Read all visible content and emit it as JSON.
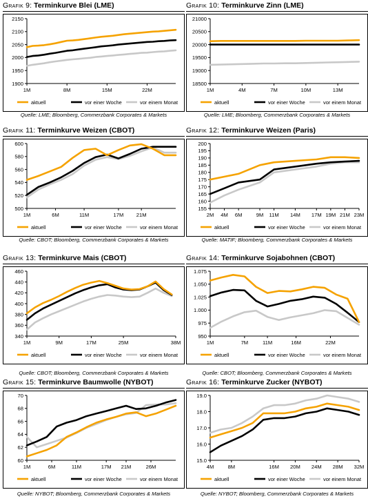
{
  "legend_labels": {
    "aktuell": "aktuell",
    "woche": "vor einer Woche",
    "monat": "vor einem Monat"
  },
  "colors": {
    "aktuell": "#F5A200",
    "woche": "#000000",
    "monat": "#C8C8C8"
  },
  "chart_data": [
    {
      "type": "line",
      "grafik": "Grafik 9:",
      "name": "Terminkurve Blei (LME)",
      "source": "Quelle: LME; Bloomberg, Commerzbank Corporates & Markets",
      "ylim": [
        1900,
        2150
      ],
      "yticks": [
        1900,
        1950,
        2000,
        2050,
        2100,
        2150
      ],
      "ytick_labels": [
        "1900",
        "1950",
        "2000",
        "2050",
        "2100",
        "2150"
      ],
      "x": [
        1,
        2,
        3,
        4,
        5,
        6,
        7,
        8,
        9,
        10,
        11,
        12,
        13,
        14,
        15,
        16,
        17,
        18,
        19,
        20,
        21,
        22,
        23,
        24,
        25,
        26,
        27
      ],
      "xlim": [
        1,
        27
      ],
      "xticks": [
        1,
        8,
        15,
        22
      ],
      "xtick_labels": [
        "1M",
        "8M",
        "15M",
        "22M"
      ],
      "series": [
        {
          "name": "aktuell",
          "values": [
            2040,
            2045,
            2046,
            2048,
            2051,
            2055,
            2060,
            2065,
            2066,
            2068,
            2071,
            2074,
            2077,
            2080,
            2082,
            2084,
            2087,
            2090,
            2092,
            2094,
            2096,
            2098,
            2100,
            2101,
            2103,
            2105,
            2107
          ]
        },
        {
          "name": "vor einer Woche",
          "values": [
            2002,
            2006,
            2008,
            2011,
            2015,
            2018,
            2022,
            2026,
            2028,
            2031,
            2034,
            2037,
            2040,
            2043,
            2045,
            2047,
            2050,
            2052,
            2054,
            2056,
            2058,
            2060,
            2061,
            2063,
            2064,
            2066,
            2067
          ]
        },
        {
          "name": "vor einem Monat",
          "values": [
            1968,
            1972,
            1975,
            1978,
            1982,
            1985,
            1988,
            1991,
            1993,
            1995,
            1997,
            1999,
            2002,
            2004,
            2006,
            2008,
            2010,
            2012,
            2014,
            2016,
            2018,
            2019,
            2021,
            2023,
            2024,
            2026,
            2028
          ]
        }
      ]
    },
    {
      "type": "line",
      "grafik": "Grafik 10:",
      "name": "Terminkurve Zinn (LME)",
      "source": "Quelle: LME; Bloomberg, Commerzbank Corporates & Markets",
      "ylim": [
        18500,
        21000
      ],
      "yticks": [
        18500,
        19000,
        19500,
        20000,
        20500,
        21000
      ],
      "ytick_labels": [
        "18500",
        "19000",
        "19500",
        "20000",
        "20500",
        "21000"
      ],
      "x": [
        1,
        2,
        3,
        4,
        5,
        6,
        7,
        8,
        9,
        10,
        11,
        12,
        13,
        14,
        15
      ],
      "xlim": [
        1,
        15
      ],
      "xticks": [
        1,
        4,
        7,
        10,
        13
      ],
      "xtick_labels": [
        "1M",
        "4M",
        "7M",
        "10M",
        "13M"
      ],
      "series": [
        {
          "name": "aktuell",
          "values": [
            20130,
            20140,
            20140,
            20140,
            20140,
            20140,
            20140,
            20140,
            20140,
            20150,
            20150,
            20150,
            20150,
            20160,
            20170
          ]
        },
        {
          "name": "vor einer Woche",
          "values": [
            20000,
            20000,
            20000,
            20000,
            20000,
            20000,
            20000,
            20000,
            20000,
            20000,
            20000,
            20000,
            20000,
            20000,
            20000
          ]
        },
        {
          "name": "vor einem Monat",
          "values": [
            19220,
            19230,
            19240,
            19250,
            19260,
            19270,
            19270,
            19280,
            19280,
            19290,
            19300,
            19310,
            19320,
            19330,
            19340
          ]
        }
      ]
    },
    {
      "type": "line",
      "grafik": "Grafik 11:",
      "name": "Terminkurve Weizen (CBOT)",
      "source": "Quelle: CBOT; Bloomberg, Commerzbank Corporates & Markets",
      "ylim": [
        500,
        600
      ],
      "yticks": [
        500,
        520,
        540,
        560,
        580,
        600
      ],
      "ytick_labels": [
        "500",
        "520",
        "540",
        "560",
        "580",
        "600"
      ],
      "x": [
        1,
        3,
        5,
        7,
        9,
        11,
        13,
        15,
        17,
        19,
        21,
        23,
        25,
        27
      ],
      "xlim": [
        1,
        27
      ],
      "xticks": [
        1,
        6,
        11,
        17,
        21
      ],
      "xtick_labels": [
        "1M",
        "6M",
        "11M",
        "17M",
        "21M"
      ],
      "series": [
        {
          "name": "aktuell",
          "values": [
            544,
            550,
            557,
            564,
            578,
            590,
            592,
            582,
            590,
            597,
            599,
            592,
            582,
            582
          ]
        },
        {
          "name": "vor einer Woche",
          "values": [
            521,
            533,
            540,
            548,
            558,
            570,
            579,
            583,
            577,
            584,
            592,
            595,
            595,
            595
          ]
        },
        {
          "name": "vor einem Monat",
          "values": [
            517,
            529,
            537,
            544,
            553,
            566,
            575,
            579,
            576,
            581,
            588,
            594,
            586,
            586
          ]
        }
      ]
    },
    {
      "type": "line",
      "grafik": "Grafik 12:",
      "name": "Terminkurve Weizen (Paris)",
      "source": "Quelle: MATIF; Bloomberg, Commerzbank Corporates & Markets",
      "ylim": [
        155,
        200
      ],
      "yticks": [
        155,
        160,
        165,
        170,
        175,
        180,
        185,
        190,
        195,
        200
      ],
      "ytick_labels": [
        "155",
        "160",
        "165",
        "170",
        "175",
        "180",
        "185",
        "190",
        "195",
        "200"
      ],
      "x": [
        2,
        4,
        6,
        9,
        11,
        14,
        17,
        19,
        21,
        23
      ],
      "xlim": [
        2,
        23
      ],
      "xticks": [
        2,
        4,
        6,
        9,
        11,
        14,
        17,
        19,
        21,
        23
      ],
      "xtick_labels": [
        "2M",
        "4M",
        "6M",
        "9M",
        "11M",
        "14M",
        "17M",
        "19M",
        "21M",
        "23M"
      ],
      "series": [
        {
          "name": "aktuell",
          "values": [
            175,
            177,
            179,
            185,
            187,
            188,
            189,
            190.5,
            190.5,
            190
          ]
        },
        {
          "name": "vor einer Woche",
          "values": [
            165,
            169,
            173,
            175,
            182,
            184,
            186,
            187,
            187.5,
            188
          ]
        },
        {
          "name": "vor einem Monat",
          "values": [
            159,
            164,
            168,
            173,
            180,
            182,
            184,
            186,
            187,
            187
          ]
        }
      ]
    },
    {
      "type": "line",
      "grafik": "Grafik 13:",
      "name": "Terminkurve Mais (CBOT)",
      "source": "Quelle: CBOT; Bloomberg, Commerzbank Corporates & Markets",
      "ylim": [
        340,
        460
      ],
      "yticks": [
        340,
        360,
        380,
        400,
        420,
        440,
        460
      ],
      "ytick_labels": [
        "340",
        "360",
        "380",
        "400",
        "420",
        "440",
        "460"
      ],
      "x": [
        1,
        3,
        5,
        7,
        9,
        11,
        13,
        15,
        17,
        19,
        21,
        23,
        25,
        27,
        29,
        31,
        33,
        35,
        37
      ],
      "xlim": [
        1,
        38
      ],
      "xticks": [
        1,
        9,
        17,
        25,
        38
      ],
      "xtick_labels": [
        "1M",
        "9M",
        "17M",
        "25M",
        "38M"
      ],
      "series": [
        {
          "name": "aktuell",
          "values": [
            382,
            393,
            401,
            407,
            414,
            422,
            429,
            435,
            439,
            442,
            438,
            433,
            428,
            426,
            427,
            432,
            441,
            427,
            417
          ]
        },
        {
          "name": "vor einer Woche",
          "values": [
            370,
            382,
            391,
            398,
            405,
            412,
            419,
            425,
            430,
            434,
            436,
            430,
            426,
            425,
            426,
            432,
            439,
            425,
            416
          ]
        },
        {
          "name": "vor einem Monat",
          "values": [
            352,
            365,
            373,
            380,
            386,
            392,
            398,
            404,
            409,
            413,
            416,
            415,
            413,
            412,
            413,
            420,
            428,
            420,
            414
          ]
        }
      ]
    },
    {
      "type": "line",
      "grafik": "Grafik 14:",
      "name": "Terminkurve Sojabohnen (CBOT)",
      "source": "Quelle: CBOT; Bloomberg, Commerzbank Corporates & Markets",
      "ylim": [
        950,
        1075
      ],
      "yticks": [
        950,
        975,
        1000,
        1025,
        1050,
        1075
      ],
      "ytick_labels": [
        "950",
        "975",
        "1.000",
        "1.025",
        "1.050",
        "1.075"
      ],
      "x": [
        1,
        3,
        5,
        7,
        9,
        11,
        13,
        15,
        17,
        19,
        21,
        23,
        25,
        27
      ],
      "xlim": [
        1,
        27
      ],
      "xticks": [
        1,
        7,
        11,
        16,
        22
      ],
      "xtick_labels": [
        "1M",
        "7M",
        "11M",
        "16M",
        "22M"
      ],
      "series": [
        {
          "name": "aktuell",
          "values": [
            1057,
            1063,
            1068,
            1065,
            1045,
            1033,
            1037,
            1036,
            1040,
            1045,
            1043,
            1030,
            1022,
            977
          ]
        },
        {
          "name": "vor einer Woche",
          "values": [
            1027,
            1034,
            1039,
            1038,
            1018,
            1007,
            1012,
            1018,
            1021,
            1026,
            1024,
            1012,
            995,
            977
          ]
        },
        {
          "name": "vor einem Monat",
          "values": [
            966,
            978,
            988,
            996,
            999,
            987,
            981,
            986,
            990,
            994,
            1000,
            998,
            985,
            972
          ]
        }
      ]
    },
    {
      "type": "line",
      "grafik": "Grafik 15:",
      "name": "Terminkurve Baumwolle (NYBOT)",
      "source": "Quelle: NYBOT; Bloomberg, Commerzbank Corporates & Markets",
      "ylim": [
        60,
        70
      ],
      "yticks": [
        60,
        62,
        64,
        66,
        68,
        70
      ],
      "ytick_labels": [
        "60",
        "62",
        "64",
        "66",
        "68",
        "70"
      ],
      "x": [
        1,
        3,
        5,
        7,
        9,
        11,
        13,
        15,
        17,
        19,
        21,
        23,
        25,
        27,
        29,
        31
      ],
      "xlim": [
        1,
        31
      ],
      "xticks": [
        1,
        6,
        11,
        17,
        21,
        26
      ],
      "xtick_labels": [
        "1M",
        "6M",
        "11M",
        "17M",
        "21M",
        "26M"
      ],
      "series": [
        {
          "name": "aktuell",
          "values": [
            60.6,
            61.1,
            61.6,
            62.3,
            63.6,
            64.3,
            65.1,
            65.8,
            66.3,
            66.7,
            67.2,
            67.4,
            66.8,
            67.2,
            67.8,
            68.4
          ]
        },
        {
          "name": "vor einer Woche",
          "values": [
            62.3,
            62.9,
            63.6,
            65.2,
            65.8,
            66.2,
            66.8,
            67.2,
            67.6,
            68.0,
            68.4,
            67.9,
            68.0,
            68.4,
            68.9,
            69.3
          ]
        },
        {
          "name": "vor einem Monat",
          "values": [
            63.6,
            62.0,
            62.5,
            63.0,
            63.5,
            64.2,
            65.0,
            65.6,
            66.2,
            66.7,
            67.1,
            67.3,
            68.5,
            68.6,
            68.6,
            68.8
          ]
        }
      ]
    },
    {
      "type": "line",
      "grafik": "Grafik 16:",
      "name": "Terminkurve Zucker (NYBOT)",
      "source": "Quelle: NYBOT; Bloomberg, Commerzbank Corporates & Markets",
      "ylim": [
        15,
        19
      ],
      "yticks": [
        15,
        16,
        17,
        18,
        19
      ],
      "ytick_labels": [
        "15.0",
        "16.0",
        "17.0",
        "18.0",
        "19.0"
      ],
      "x": [
        4,
        6,
        8,
        10,
        12,
        14,
        16,
        18,
        20,
        22,
        24,
        26,
        28,
        30,
        32
      ],
      "xlim": [
        4,
        32
      ],
      "xticks": [
        4,
        8,
        16,
        20,
        24,
        28,
        32
      ],
      "xtick_labels": [
        "4M",
        "8M",
        "16M",
        "20M",
        "24M",
        "28M",
        "32M"
      ],
      "series": [
        {
          "name": "aktuell",
          "values": [
            16.4,
            16.6,
            16.8,
            17.0,
            17.3,
            17.9,
            17.9,
            17.9,
            18.0,
            18.2,
            18.3,
            18.5,
            18.4,
            18.3,
            18.1
          ]
        },
        {
          "name": "vor einer Woche",
          "values": [
            15.5,
            15.9,
            16.2,
            16.5,
            16.9,
            17.5,
            17.6,
            17.6,
            17.7,
            17.9,
            18.0,
            18.2,
            18.1,
            18.0,
            17.8
          ]
        },
        {
          "name": "vor einem Monat",
          "values": [
            16.7,
            16.9,
            17.0,
            17.3,
            17.7,
            18.2,
            18.4,
            18.4,
            18.5,
            18.7,
            18.8,
            19.0,
            18.9,
            18.8,
            18.6
          ]
        }
      ]
    }
  ]
}
